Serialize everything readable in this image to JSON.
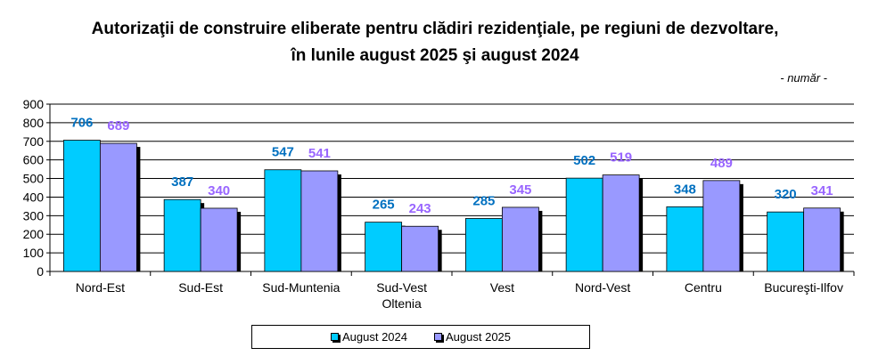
{
  "title_line1": "Autorizaţii de construire eliberate pentru clădiri rezidenţiale, pe regiuni de dezvoltare,",
  "title_line2": "în lunile august 2025 şi august 2024",
  "unit": "- număr -",
  "chart_data": {
    "type": "bar",
    "title": "Autorizaţii de construire eliberate pentru clădiri rezidenţiale, pe regiuni de dezvoltare, în lunile august 2025 şi august 2024",
    "categories": [
      "Nord-Est",
      "Sud-Est",
      "Sud-Muntenia",
      "Sud-Vest Oltenia",
      "Vest",
      "Nord-Vest",
      "Centru",
      "Bucureşti-Ilfov"
    ],
    "category_lines": [
      [
        "Nord-Est"
      ],
      [
        "Sud-Est"
      ],
      [
        "Sud-Muntenia"
      ],
      [
        "Sud-Vest",
        "Oltenia"
      ],
      [
        "Vest"
      ],
      [
        "Nord-Vest"
      ],
      [
        "Centru"
      ],
      [
        "Bucureşti-Ilfov"
      ]
    ],
    "series": [
      {
        "name": "August 2024",
        "values": [
          706,
          387,
          547,
          265,
          285,
          502,
          348,
          320
        ],
        "color": "#00CCFF",
        "label_color": "#0070C0"
      },
      {
        "name": "August 2025",
        "values": [
          689,
          340,
          541,
          243,
          345,
          519,
          489,
          341
        ],
        "color": "#9999FF",
        "label_color": "#9966FF"
      }
    ],
    "ylim": [
      0,
      900
    ],
    "yticks": [
      0,
      100,
      200,
      300,
      400,
      500,
      600,
      700,
      800,
      900
    ],
    "grid": true,
    "legend": "bottom"
  }
}
